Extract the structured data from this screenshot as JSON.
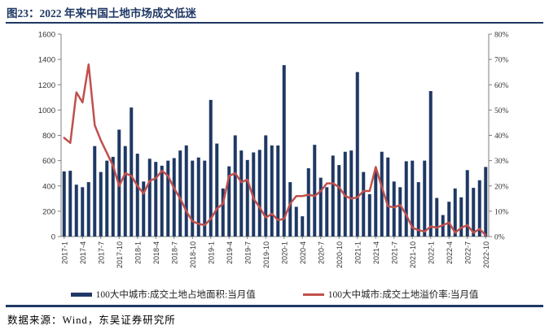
{
  "header": {
    "title": "图23：2022 年来中国土地市场成交低迷"
  },
  "footer": {
    "source": "数据来源：Wind，东吴证券研究所"
  },
  "colors": {
    "bar": "#1f3864",
    "line": "#c0504d",
    "title": "#1f3864",
    "rule": "#1f3864",
    "axis": "#7f7f7f",
    "tick_text": "#333333"
  },
  "legend": [
    {
      "label": "100大中城市:成交土地占地面积:当月值",
      "type": "bar"
    },
    {
      "label": "100大中城市:成交土地溢价率:当月值",
      "type": "line"
    }
  ],
  "chart_data": {
    "type": "combo",
    "grid": false,
    "legend_position": "bottom",
    "x_tick_every": 3,
    "left_axis": {
      "min": 0,
      "max": 1600,
      "step": 200
    },
    "right_axis": {
      "min": 0,
      "max": 80,
      "step": 10,
      "format": "percent"
    },
    "categories": [
      "2017-1",
      "2017-2",
      "2017-3",
      "2017-4",
      "2017-5",
      "2017-6",
      "2017-7",
      "2017-8",
      "2017-9",
      "2017-10",
      "2017-11",
      "2017-12",
      "2018-1",
      "2018-2",
      "2018-3",
      "2018-4",
      "2018-5",
      "2018-6",
      "2018-7",
      "2018-8",
      "2018-9",
      "2018-10",
      "2018-11",
      "2018-12",
      "2019-1",
      "2019-2",
      "2019-3",
      "2019-4",
      "2019-5",
      "2019-6",
      "2019-7",
      "2019-8",
      "2019-9",
      "2019-10",
      "2019-11",
      "2019-12",
      "2020-1",
      "2020-2",
      "2020-3",
      "2020-4",
      "2020-5",
      "2020-6",
      "2020-7",
      "2020-8",
      "2020-9",
      "2020-10",
      "2020-11",
      "2020-12",
      "2021-1",
      "2021-2",
      "2021-3",
      "2021-4",
      "2021-5",
      "2021-6",
      "2021-7",
      "2021-8",
      "2021-9",
      "2021-10",
      "2021-11",
      "2021-12",
      "2022-1",
      "2022-2",
      "2022-3",
      "2022-4",
      "2022-5",
      "2022-6",
      "2022-7",
      "2022-8",
      "2022-9",
      "2022-10"
    ],
    "series": [
      {
        "name": "100大中城市:成交土地占地面积:当月值",
        "type": "bar",
        "axis": "left",
        "values": [
          515,
          520,
          410,
          390,
          430,
          715,
          510,
          600,
          630,
          845,
          715,
          1020,
          655,
          435,
          615,
          590,
          560,
          600,
          620,
          680,
          720,
          600,
          625,
          600,
          1080,
          735,
          380,
          555,
          800,
          680,
          605,
          665,
          685,
          800,
          720,
          720,
          1355,
          430,
          235,
          160,
          540,
          725,
          465,
          390,
          640,
          565,
          670,
          680,
          1300,
          510,
          335,
          530,
          670,
          625,
          435,
          390,
          595,
          600,
          430,
          600,
          1150,
          305,
          170,
          275,
          380,
          310,
          525,
          385,
          445,
          550
        ]
      },
      {
        "name": "100大中城市:成交土地溢价率:当月值",
        "type": "line",
        "axis": "right",
        "values": [
          39,
          37,
          57,
          53,
          68,
          44,
          38,
          33,
          28,
          20,
          25,
          24,
          20,
          17,
          22,
          23,
          26,
          24,
          19,
          15,
          10,
          6,
          5,
          4.5,
          7,
          11,
          13,
          24,
          25,
          21.5,
          22.5,
          15,
          11.5,
          7.5,
          9,
          6.5,
          7,
          13,
          16,
          16,
          16.5,
          16,
          18,
          21,
          21,
          19.5,
          16,
          15,
          15.5,
          18,
          18,
          27.5,
          19.5,
          12,
          11.5,
          12.5,
          8.5,
          3.5,
          2.5,
          2,
          4,
          3.5,
          4.5,
          5.5,
          1.5,
          3.5,
          4.5,
          1.5,
          3,
          0.5
        ]
      }
    ]
  }
}
